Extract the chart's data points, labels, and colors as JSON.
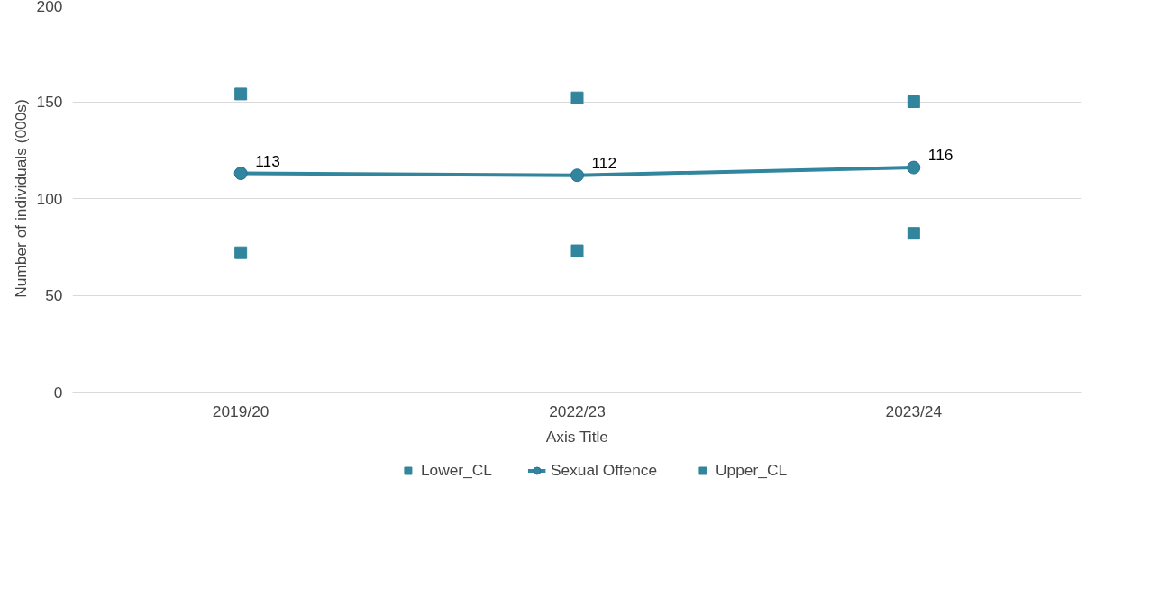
{
  "chart_data": {
    "type": "line",
    "xlabel": "Axis Title",
    "ylabel": "Number of individuals (000s)",
    "categories": [
      "2019/20",
      "2022/23",
      "2023/24"
    ],
    "series": [
      {
        "name": "Lower_CL",
        "type": "scatter",
        "marker": "square",
        "color": "#31859c",
        "values": [
          72,
          73,
          82
        ]
      },
      {
        "name": "Sexual Offence",
        "marker": "circle",
        "color": "#31859c",
        "values": [
          113,
          112,
          116
        ],
        "value_labels": [
          "113",
          "112",
          "116"
        ]
      },
      {
        "name": "Upper_CL",
        "type": "scatter",
        "marker": "square",
        "color": "#31859c",
        "values": [
          154,
          152,
          150
        ]
      }
    ],
    "ylim": [
      0,
      200
    ],
    "yticks": [
      0,
      50,
      100,
      150,
      200
    ],
    "grid": "y",
    "legend": "bottom"
  }
}
